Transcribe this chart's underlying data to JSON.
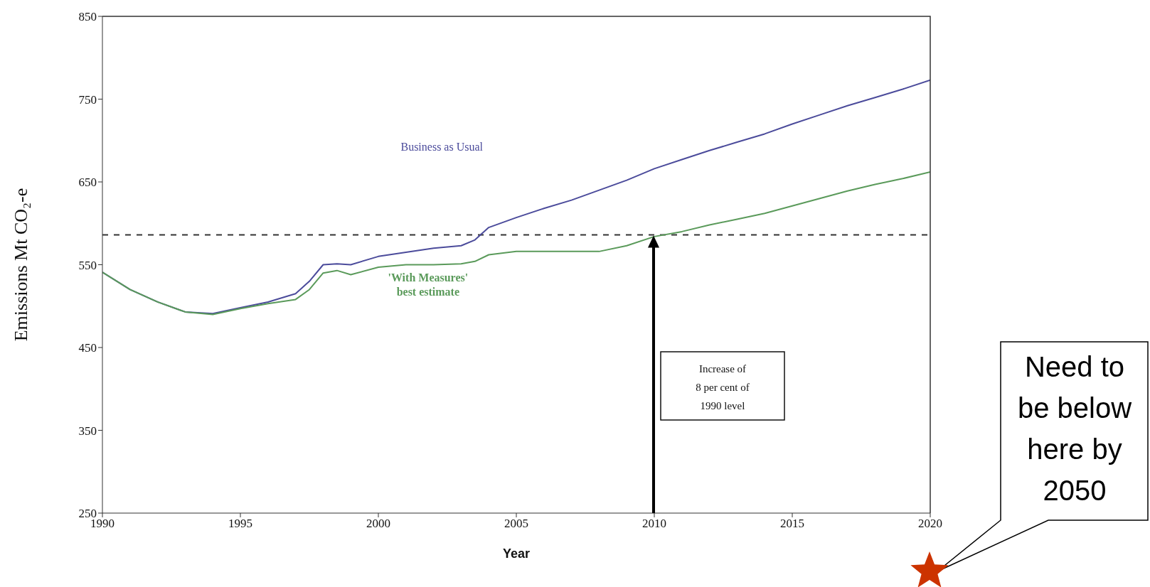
{
  "chart_data": {
    "type": "line",
    "xlabel": "Year",
    "ylabel": "Emissions Mt CO₂-e",
    "x": [
      1990,
      1991,
      1992,
      1993,
      1994,
      1995,
      1996,
      1997,
      1997.5,
      1998,
      1998.5,
      1999,
      2000,
      2001,
      2002,
      2003,
      2003.5,
      2004,
      2005,
      2006,
      2007,
      2008,
      2009,
      2010,
      2011,
      2012,
      2013,
      2014,
      2015,
      2016,
      2017,
      2018,
      2019,
      2020
    ],
    "series": [
      {
        "name": "Business as Usual",
        "color": "#4b4b9b",
        "values": [
          541,
          520,
          505,
          493,
          491,
          498,
          505,
          515,
          530,
          550,
          551,
          550,
          560,
          565,
          570,
          573,
          580,
          595,
          607,
          618,
          628,
          640,
          652,
          666,
          677,
          688,
          698,
          708,
          720,
          731,
          742,
          752,
          762,
          773
        ]
      },
      {
        "name": "'With Measures' best estimate",
        "color": "#5a9a5a",
        "values": [
          541,
          520,
          505,
          493,
          490,
          497,
          503,
          508,
          520,
          540,
          543,
          538,
          547,
          550,
          550,
          551,
          554,
          562,
          566,
          566,
          566,
          566,
          573,
          584,
          590,
          598,
          605,
          612,
          621,
          630,
          639,
          647,
          654,
          662
        ]
      }
    ],
    "xlim": [
      1990,
      2020
    ],
    "xticks": [
      1990,
      1995,
      2000,
      2005,
      2010,
      2015,
      2020
    ],
    "ylim": [
      250,
      850
    ],
    "yticks": [
      250,
      350,
      450,
      550,
      650,
      750,
      850
    ],
    "grid": false,
    "legend": false,
    "marker": "none",
    "line_style": "solid",
    "ref_lines": [
      {
        "axis": "y",
        "value": 586,
        "line_style": "dashed",
        "color": "#333333"
      }
    ],
    "annotations": [
      "Increase of 8 per cent of 1990 level",
      "Need to be below here by 2050"
    ]
  }
}
